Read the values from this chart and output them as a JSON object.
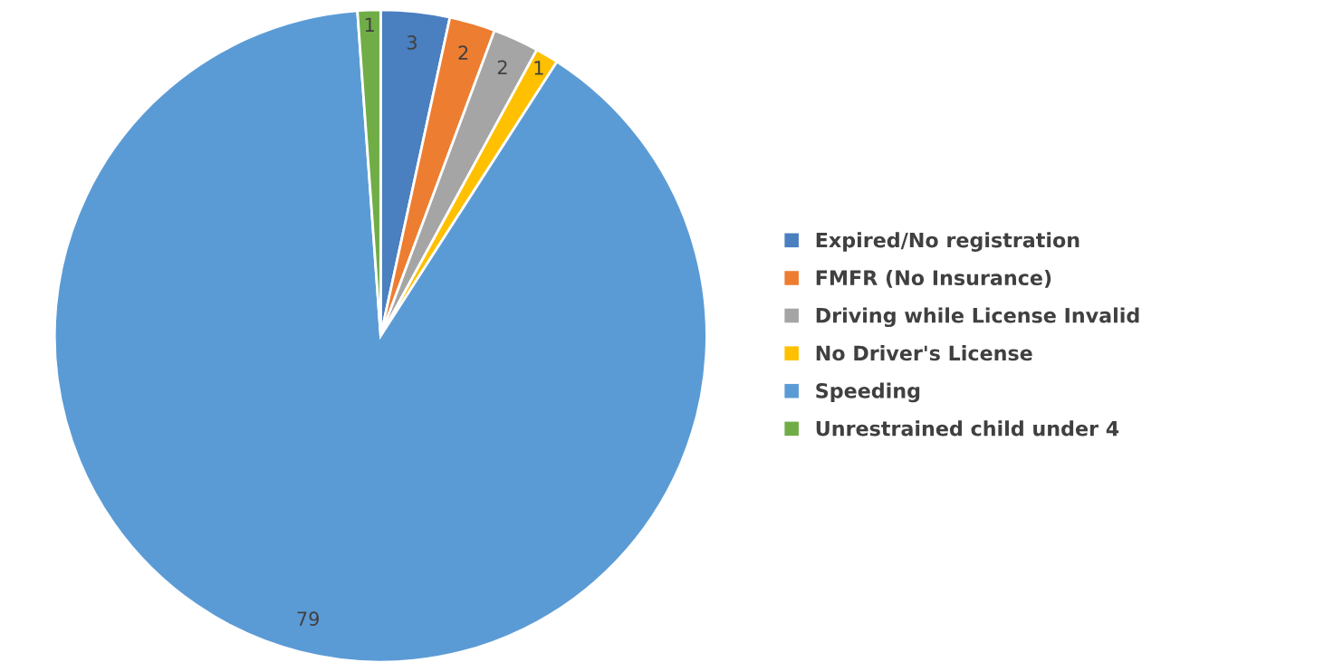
{
  "chart_data": {
    "type": "pie",
    "categories": [
      "Expired/No registration",
      "FMFR (No Insurance)",
      "Driving while License Invalid",
      "No Driver's License",
      "Speeding",
      "Unrestrained child under 4"
    ],
    "values": [
      3,
      2,
      2,
      1,
      79,
      1
    ],
    "colors": [
      "#4a7fc0",
      "#ed7d31",
      "#a5a5a5",
      "#ffc000",
      "#5b9bd5",
      "#70ad47"
    ],
    "data_labels": true,
    "legend": "right"
  }
}
